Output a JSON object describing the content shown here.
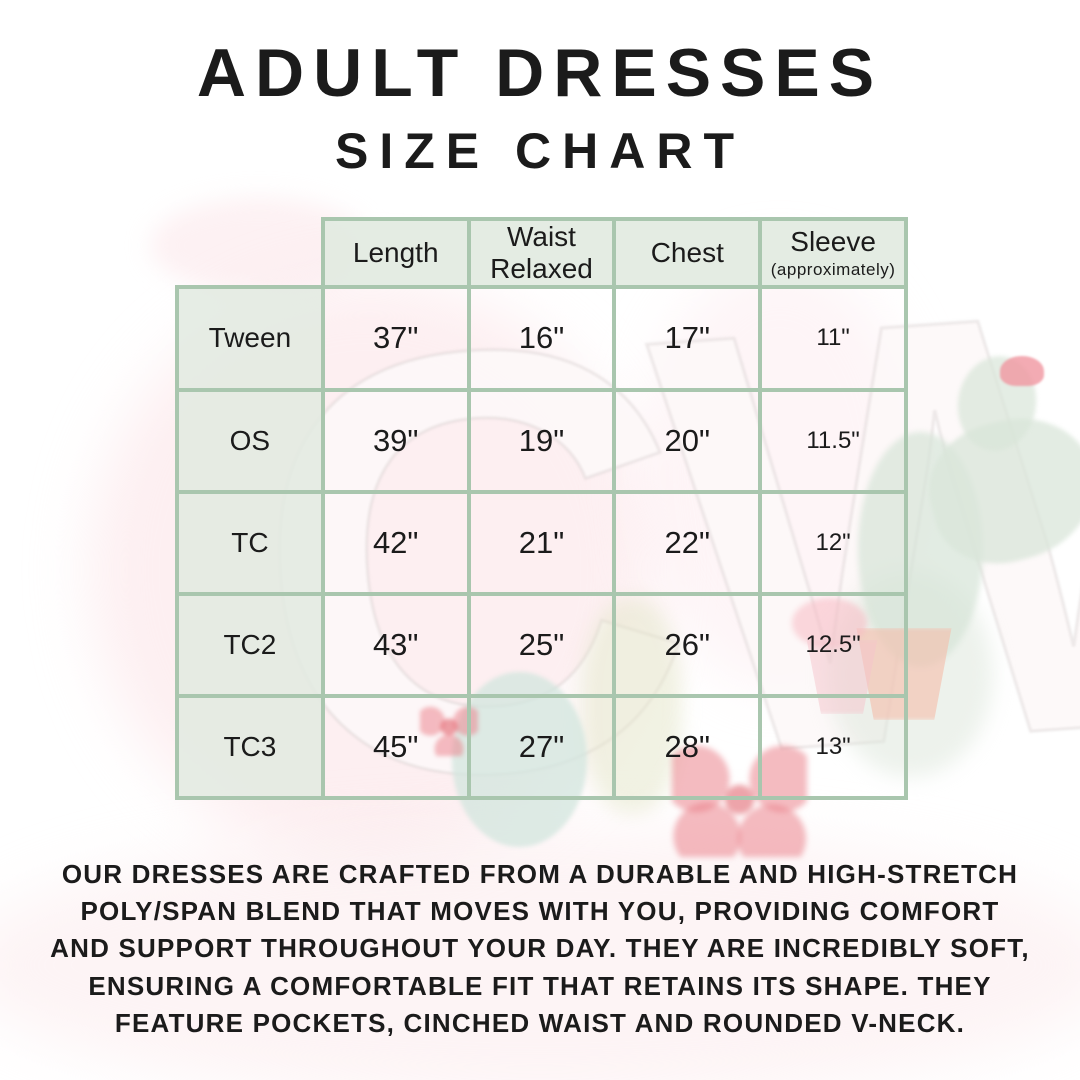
{
  "title": {
    "line1": "ADULT DRESSES",
    "line2": "SIZE CHART"
  },
  "table": {
    "columns": [
      {
        "label": "Length",
        "sub": ""
      },
      {
        "label": "Waist Relaxed",
        "sub": ""
      },
      {
        "label": "Chest",
        "sub": ""
      },
      {
        "label": "Sleeve",
        "sub": "(approximately)"
      }
    ],
    "rows": [
      {
        "size": "Tween",
        "length": "37\"",
        "waist": "16\"",
        "chest": "17\"",
        "sleeve": "11\""
      },
      {
        "size": "OS",
        "length": "39\"",
        "waist": "19\"",
        "chest": "20\"",
        "sleeve": "11.5\""
      },
      {
        "size": "TC",
        "length": "42\"",
        "waist": "21\"",
        "chest": "22\"",
        "sleeve": "12\""
      },
      {
        "size": "TC2",
        "length": "43\"",
        "waist": "25\"",
        "chest": "26\"",
        "sleeve": "12.5\""
      },
      {
        "size": "TC3",
        "length": "45\"",
        "waist": "27\"",
        "chest": "28\"",
        "sleeve": "13\""
      }
    ]
  },
  "footer": {
    "lines": [
      "OUR DRESSES ARE CRAFTED FROM A DURABLE AND HIGH-STRETCH",
      "POLY/SPAN BLEND THAT MOVES WITH YOU, PROVIDING COMFORT",
      "AND SUPPORT THROUGHOUT YOUR DAY. THEY ARE INCREDIBLY SOFT,",
      "ENSURING A COMFORTABLE FIT THAT RETAINS ITS SHAPE. THEY",
      "FEATURE POCKETS, CINCHED WAIST AND ROUNDED V-NECK."
    ]
  },
  "watermark": {
    "monogram": "CW"
  },
  "colors": {
    "table_border": "#a9c6ae",
    "cell_background": "#e2eae1",
    "text": "#1b1b1b",
    "watermark_pink": "#fbe1e6",
    "watermark_green": "#d9e6d9",
    "watermark_red": "#e9787f"
  },
  "chart_data": {
    "type": "table",
    "title": "ADULT DRESSES SIZE CHART",
    "columns": [
      "",
      "Length",
      "Waist Relaxed",
      "Chest",
      "Sleeve (approximately)"
    ],
    "rows": [
      [
        "Tween",
        "37\"",
        "16\"",
        "17\"",
        "11\""
      ],
      [
        "OS",
        "39\"",
        "19\"",
        "20\"",
        "11.5\""
      ],
      [
        "TC",
        "42\"",
        "21\"",
        "22\"",
        "12\""
      ],
      [
        "TC2",
        "43\"",
        "25\"",
        "26\"",
        "12.5\""
      ],
      [
        "TC3",
        "45\"",
        "27\"",
        "28\"",
        "13\""
      ]
    ]
  }
}
